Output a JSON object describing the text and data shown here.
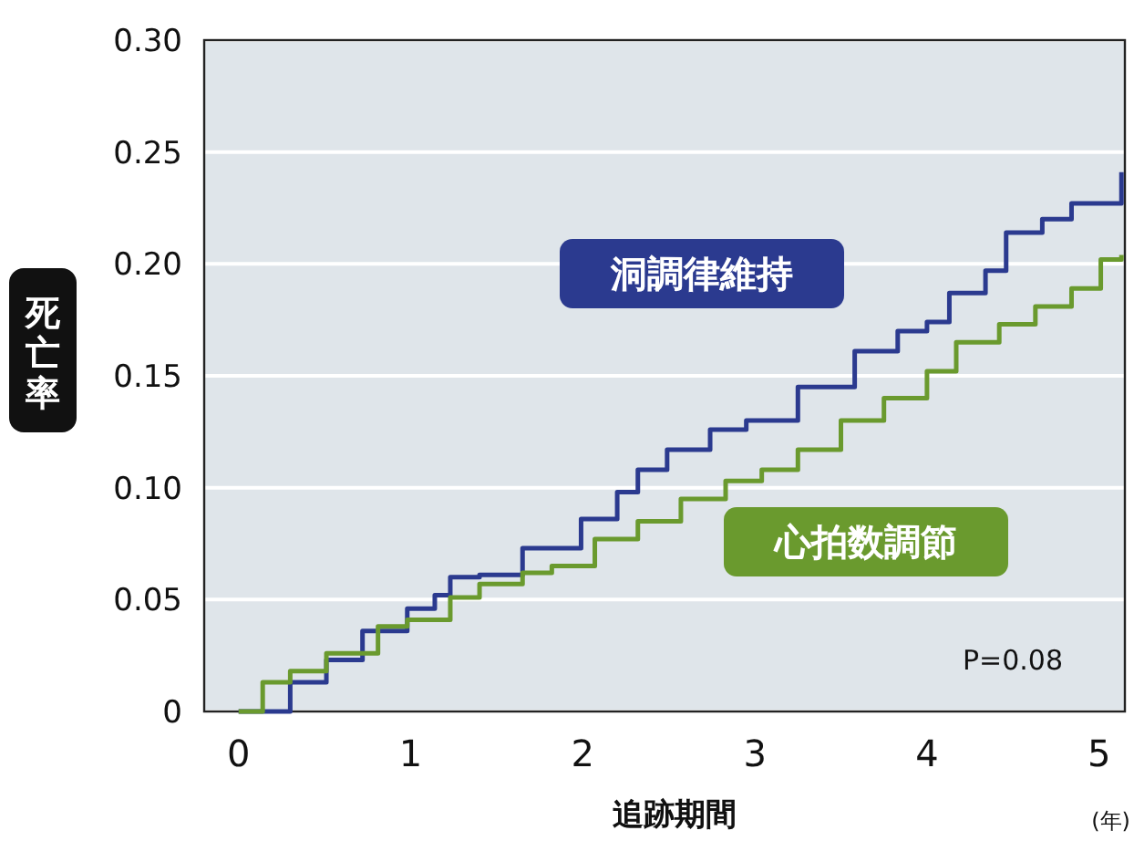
{
  "chart_data": {
    "type": "step",
    "xlabel": "追跡期間",
    "ylabel": "死亡率",
    "annotations": [
      "P=0.08",
      "(年)"
    ],
    "xlim": [
      -0.2,
      5.15
    ],
    "ylim": [
      0,
      0.3
    ],
    "xticks": [
      0,
      1,
      2,
      3,
      4,
      5
    ],
    "yticks": [
      0,
      {
        "value": 0.05,
        "label": "0.05"
      },
      {
        "value": 0.1,
        "label": "0.10"
      },
      {
        "value": 0.15,
        "label": "0.15"
      },
      {
        "value": 0.2,
        "label": "0.20"
      },
      {
        "value": 0.25,
        "label": "0.25"
      },
      {
        "value": 0.3,
        "label": "0.30"
      }
    ],
    "grid": "y",
    "series": [
      {
        "name": "洞調律維持",
        "color": "#2b3a8f",
        "x": [
          0,
          0.3,
          0.51,
          0.72,
          0.98,
          1.14,
          1.23,
          1.4,
          1.65,
          1.99,
          2.2,
          2.32,
          2.49,
          2.74,
          2.95,
          3.25,
          3.58,
          3.83,
          4.0,
          4.13,
          4.34,
          4.46,
          4.67,
          4.84,
          5.13
        ],
        "values": [
          0,
          0.013,
          0.023,
          0.036,
          0.046,
          0.052,
          0.06,
          0.061,
          0.073,
          0.086,
          0.098,
          0.108,
          0.117,
          0.126,
          0.13,
          0.145,
          0.161,
          0.17,
          0.174,
          0.187,
          0.197,
          0.214,
          0.22,
          0.227,
          0.241
        ]
      },
      {
        "name": "心拍数調節",
        "color": "#6a9a2e",
        "x": [
          0,
          0.14,
          0.3,
          0.51,
          0.81,
          0.98,
          1.23,
          1.4,
          1.65,
          1.82,
          2.07,
          2.32,
          2.57,
          2.83,
          3.04,
          3.25,
          3.5,
          3.75,
          4.0,
          4.17,
          4.42,
          4.63,
          4.84,
          5.01,
          5.13
        ],
        "values": [
          0,
          0.013,
          0.018,
          0.026,
          0.038,
          0.041,
          0.051,
          0.057,
          0.062,
          0.065,
          0.077,
          0.085,
          0.095,
          0.103,
          0.108,
          0.117,
          0.13,
          0.14,
          0.152,
          0.165,
          0.173,
          0.181,
          0.189,
          0.202,
          0.204
        ]
      }
    ]
  }
}
